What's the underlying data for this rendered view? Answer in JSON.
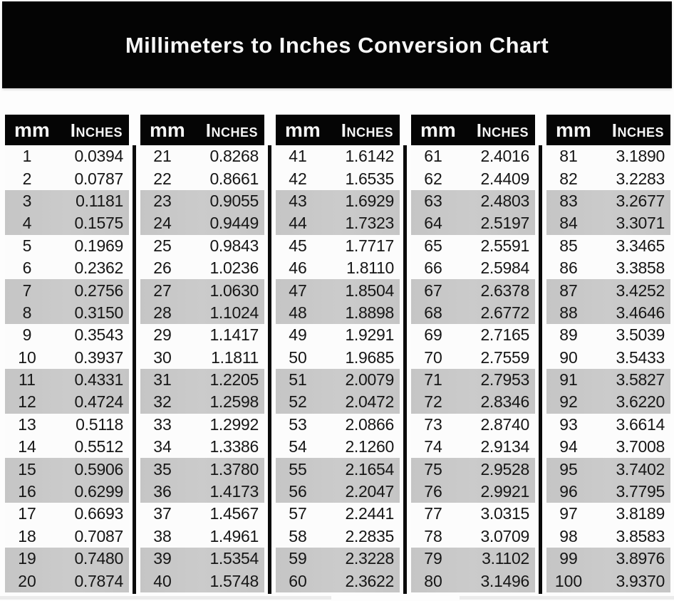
{
  "header": {
    "title": "Millimeters to Inches Conversion Chart"
  },
  "columns": {
    "mm": "mm",
    "inches": "Inches"
  },
  "tables": [
    {
      "rows": [
        [
          "1",
          "0.0394"
        ],
        [
          "2",
          "0.0787"
        ],
        [
          "3",
          "0.1181"
        ],
        [
          "4",
          "0.1575"
        ],
        [
          "5",
          "0.1969"
        ],
        [
          "6",
          "0.2362"
        ],
        [
          "7",
          "0.2756"
        ],
        [
          "8",
          "0.3150"
        ],
        [
          "9",
          "0.3543"
        ],
        [
          "10",
          "0.3937"
        ],
        [
          "11",
          "0.4331"
        ],
        [
          "12",
          "0.4724"
        ],
        [
          "13",
          "0.5118"
        ],
        [
          "14",
          "0.5512"
        ],
        [
          "15",
          "0.5906"
        ],
        [
          "16",
          "0.6299"
        ],
        [
          "17",
          "0.6693"
        ],
        [
          "18",
          "0.7087"
        ],
        [
          "19",
          "0.7480"
        ],
        [
          "20",
          "0.7874"
        ]
      ]
    },
    {
      "rows": [
        [
          "21",
          "0.8268"
        ],
        [
          "22",
          "0.8661"
        ],
        [
          "23",
          "0.9055"
        ],
        [
          "24",
          "0.9449"
        ],
        [
          "25",
          "0.9843"
        ],
        [
          "26",
          "1.0236"
        ],
        [
          "27",
          "1.0630"
        ],
        [
          "28",
          "1.1024"
        ],
        [
          "29",
          "1.1417"
        ],
        [
          "30",
          "1.1811"
        ],
        [
          "31",
          "1.2205"
        ],
        [
          "32",
          "1.2598"
        ],
        [
          "33",
          "1.2992"
        ],
        [
          "34",
          "1.3386"
        ],
        [
          "35",
          "1.3780"
        ],
        [
          "36",
          "1.4173"
        ],
        [
          "37",
          "1.4567"
        ],
        [
          "38",
          "1.4961"
        ],
        [
          "39",
          "1.5354"
        ],
        [
          "40",
          "1.5748"
        ]
      ]
    },
    {
      "rows": [
        [
          "41",
          "1.6142"
        ],
        [
          "42",
          "1.6535"
        ],
        [
          "43",
          "1.6929"
        ],
        [
          "44",
          "1.7323"
        ],
        [
          "45",
          "1.7717"
        ],
        [
          "46",
          "1.8110"
        ],
        [
          "47",
          "1.8504"
        ],
        [
          "48",
          "1.8898"
        ],
        [
          "49",
          "1.9291"
        ],
        [
          "50",
          "1.9685"
        ],
        [
          "51",
          "2.0079"
        ],
        [
          "52",
          "2.0472"
        ],
        [
          "53",
          "2.0866"
        ],
        [
          "54",
          "2.1260"
        ],
        [
          "55",
          "2.1654"
        ],
        [
          "56",
          "2.2047"
        ],
        [
          "57",
          "2.2441"
        ],
        [
          "58",
          "2.2835"
        ],
        [
          "59",
          "2.3228"
        ],
        [
          "60",
          "2.3622"
        ]
      ]
    },
    {
      "rows": [
        [
          "61",
          "2.4016"
        ],
        [
          "62",
          "2.4409"
        ],
        [
          "63",
          "2.4803"
        ],
        [
          "64",
          "2.5197"
        ],
        [
          "65",
          "2.5591"
        ],
        [
          "66",
          "2.5984"
        ],
        [
          "67",
          "2.6378"
        ],
        [
          "68",
          "2.6772"
        ],
        [
          "69",
          "2.7165"
        ],
        [
          "70",
          "2.7559"
        ],
        [
          "71",
          "2.7953"
        ],
        [
          "72",
          "2.8346"
        ],
        [
          "73",
          "2.8740"
        ],
        [
          "74",
          "2.9134"
        ],
        [
          "75",
          "2.9528"
        ],
        [
          "76",
          "2.9921"
        ],
        [
          "77",
          "3.0315"
        ],
        [
          "78",
          "3.0709"
        ],
        [
          "79",
          "3.1102"
        ],
        [
          "80",
          "3.1496"
        ]
      ]
    },
    {
      "rows": [
        [
          "81",
          "3.1890"
        ],
        [
          "82",
          "3.2283"
        ],
        [
          "83",
          "3.2677"
        ],
        [
          "84",
          "3.3071"
        ],
        [
          "85",
          "3.3465"
        ],
        [
          "86",
          "3.3858"
        ],
        [
          "87",
          "3.4252"
        ],
        [
          "88",
          "3.4646"
        ],
        [
          "89",
          "3.5039"
        ],
        [
          "90",
          "3.5433"
        ],
        [
          "91",
          "3.5827"
        ],
        [
          "92",
          "3.6220"
        ],
        [
          "93",
          "3.6614"
        ],
        [
          "94",
          "3.7008"
        ],
        [
          "95",
          "3.7402"
        ],
        [
          "96",
          "3.7795"
        ],
        [
          "97",
          "3.8189"
        ],
        [
          "98",
          "3.8583"
        ],
        [
          "99",
          "3.8976"
        ],
        [
          "100",
          "3.9370"
        ]
      ]
    }
  ],
  "colors": {
    "banner_bg": "#040404",
    "header_bg": "#050505",
    "stripe_gray": "#c8c8c8",
    "row_white": "#fcfcfc",
    "text": "#161616"
  }
}
